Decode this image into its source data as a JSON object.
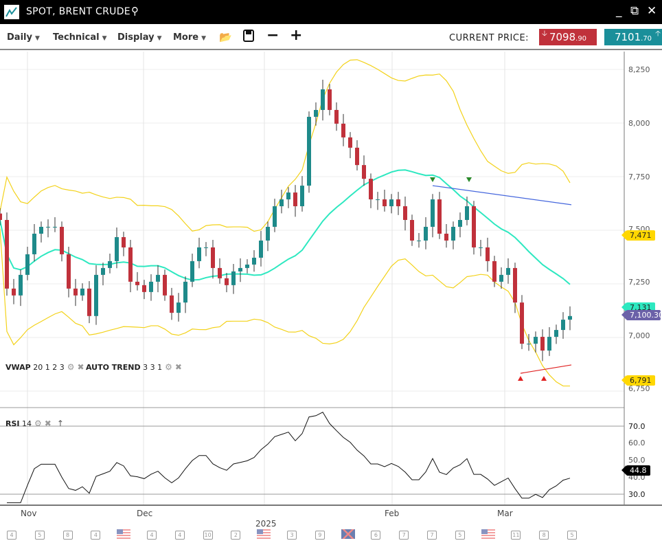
{
  "window": {
    "title": "SPOT, BRENT CRUDE",
    "search_icon": "magnifier-icon",
    "controls": [
      "minimize-icon",
      "popout-icon",
      "close-icon"
    ]
  },
  "toolbar": {
    "menus": [
      {
        "label": "Daily"
      },
      {
        "label": "Technical"
      },
      {
        "label": "Display"
      },
      {
        "label": "More"
      }
    ],
    "tools": [
      "folder-open-icon",
      "save-icon",
      "zoom-out-icon",
      "zoom-in-icon"
    ],
    "current_price_label": "CURRENT PRICE:",
    "bid": {
      "main": "7098",
      "decimals": ".90",
      "color": "#c0313b",
      "direction": "down"
    },
    "ask": {
      "main": "7101",
      "decimals": ".70",
      "color": "#1a8f9a",
      "direction": "up"
    }
  },
  "legend": {
    "vwap": {
      "name": "VWAP",
      "params": "20 1 2 3"
    },
    "autotrend": {
      "name": "AUTO TREND",
      "params": "3 3 1"
    },
    "rsi": {
      "name": "RSI",
      "params": "14"
    }
  },
  "price_axis": {
    "ticks": [
      "8,250",
      "8,000",
      "7,750",
      "7,500",
      "7,250",
      "7,000",
      "6,750"
    ]
  },
  "rsi_axis": {
    "ticks": [
      "70.0",
      "60.0",
      "50.0",
      "40.0",
      "30.0"
    ]
  },
  "tags": {
    "upper_band": "7,471",
    "mid_band": "7,131",
    "last_price": "7,100.30",
    "lower_band": "6,791",
    "rsi": "44.8"
  },
  "colors": {
    "up": "#1e8a8a",
    "down": "#c0313b",
    "band": "#f3d21a",
    "mid": "#2de8c0",
    "trend_high": "#4466dd",
    "trend_low": "#e02020",
    "last": "#6b61a8"
  },
  "x_axis": {
    "months": [
      "Nov",
      "Dec",
      "Feb",
      "Mar"
    ],
    "year": "2025"
  },
  "events": [
    "4",
    "5",
    "8",
    "4",
    "US",
    "4",
    "4",
    "10",
    "2",
    "US",
    "3",
    "9",
    "UK",
    "6",
    "7",
    "7",
    "5",
    "US",
    "11",
    "8",
    "5"
  ],
  "chart_data": {
    "type": "candlestick",
    "ylim": [
      6700,
      8300
    ],
    "closes": [
      7548,
      7228,
      7196,
      7292,
      7388,
      7484,
      7516,
      7516,
      7516,
      7388,
      7228,
      7196,
      7228,
      7100,
      7292,
      7324,
      7356,
      7468,
      7420,
      7260,
      7244,
      7212,
      7260,
      7292,
      7196,
      7115,
      7163,
      7260,
      7356,
      7420,
      7420,
      7324,
      7276,
      7244,
      7308,
      7324,
      7340,
      7372,
      7452,
      7516,
      7612,
      7644,
      7676,
      7612,
      7708,
      8029,
      8061,
      8157,
      8061,
      7997,
      7933,
      7885,
      7804,
      7740,
      7644,
      7644,
      7612,
      7644,
      7612,
      7548,
      7452,
      7452,
      7516,
      7644,
      7484,
      7452,
      7516,
      7548,
      7612,
      7420,
      7420,
      7356,
      7260,
      7292,
      7324,
      7163,
      6971,
      6971,
      7003,
      6939,
      7003,
      7035,
      7083,
      7100
    ],
    "trend_high": [
      7708,
      7619
    ],
    "trend_low": [
      6833,
      6872
    ],
    "rsi_period": 14
  }
}
